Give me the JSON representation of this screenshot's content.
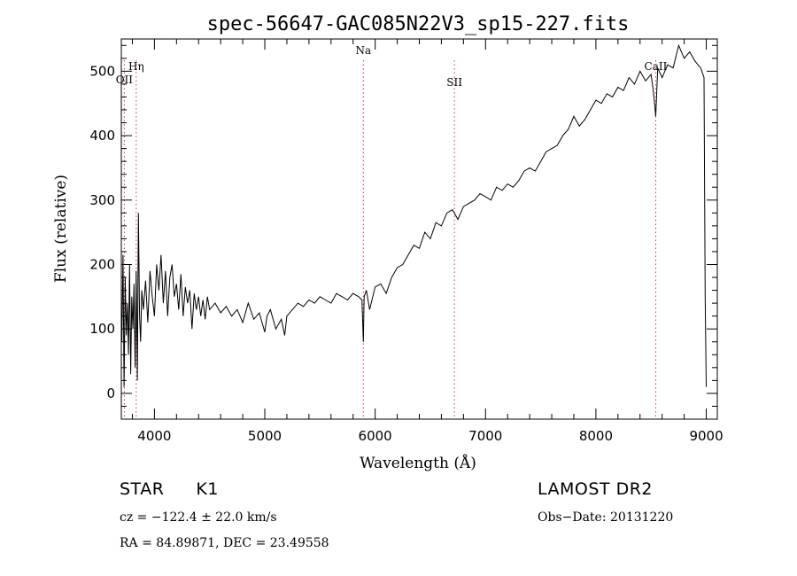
{
  "chart_data": {
    "type": "line",
    "title": "spec-56647-GAC085N22V3_sp15-227.fits",
    "xlabel": "Wavelength (Å)",
    "ylabel": "Flux (relative)",
    "xlim": [
      3700,
      9100
    ],
    "ylim": [
      -40,
      550
    ],
    "x_ticks": [
      4000,
      5000,
      6000,
      7000,
      8000,
      9000
    ],
    "y_ticks": [
      0,
      100,
      200,
      300,
      400,
      500
    ],
    "grid": false,
    "line_color": "#000000",
    "marker_color": "#cc3333",
    "lines": [
      {
        "label": "OII",
        "x": 3727
      },
      {
        "label": "Hη",
        "x": 3835
      },
      {
        "label": "Na",
        "x": 5893
      },
      {
        "label": "SII",
        "x": 6718
      },
      {
        "label": "CaII",
        "x": 8542
      }
    ],
    "series": [
      {
        "x": [
          3705,
          3715,
          3725,
          3735,
          3745,
          3755,
          3765,
          3775,
          3785,
          3795,
          3805,
          3815,
          3825,
          3835,
          3845,
          3855,
          3865,
          3875,
          3885,
          3900,
          3920,
          3940,
          3960,
          3980,
          4000,
          4020,
          4040,
          4060,
          4080,
          4100,
          4120,
          4140,
          4160,
          4180,
          4200,
          4220,
          4240,
          4260,
          4280,
          4300,
          4320,
          4340,
          4360,
          4380,
          4400,
          4420,
          4440,
          4460,
          4480,
          4500,
          4550,
          4600,
          4650,
          4700,
          4750,
          4800,
          4850,
          4900,
          4950,
          5000,
          5020,
          5050,
          5100,
          5150,
          5180,
          5200,
          5250,
          5300,
          5350,
          5400,
          5450,
          5500,
          5550,
          5600,
          5650,
          5700,
          5750,
          5800,
          5850,
          5880,
          5893,
          5900,
          5920,
          5950,
          6000,
          6050,
          6100,
          6150,
          6200,
          6250,
          6300,
          6350,
          6400,
          6450,
          6500,
          6550,
          6600,
          6650,
          6700,
          6750,
          6800,
          6850,
          6900,
          6950,
          7000,
          7050,
          7100,
          7150,
          7200,
          7250,
          7300,
          7350,
          7400,
          7450,
          7500,
          7550,
          7600,
          7650,
          7700,
          7750,
          7800,
          7850,
          7900,
          7950,
          8000,
          8050,
          8100,
          8150,
          8200,
          8250,
          8300,
          8350,
          8400,
          8450,
          8500,
          8520,
          8542,
          8560,
          8600,
          8650,
          8700,
          8750,
          8800,
          8850,
          8900,
          8950,
          8980,
          8990,
          9000
        ],
        "y": [
          80,
          215,
          10,
          180,
          90,
          140,
          60,
          200,
          30,
          150,
          100,
          170,
          40,
          190,
          20,
          280,
          120,
          80,
          160,
          130,
          175,
          110,
          190,
          150,
          120,
          200,
          160,
          215,
          140,
          190,
          120,
          180,
          200,
          150,
          170,
          130,
          185,
          120,
          165,
          140,
          160,
          100,
          155,
          130,
          150,
          120,
          145,
          115,
          150,
          130,
          140,
          125,
          135,
          120,
          130,
          110,
          140,
          115,
          125,
          95,
          120,
          130,
          100,
          115,
          90,
          120,
          130,
          140,
          135,
          145,
          140,
          150,
          145,
          140,
          155,
          150,
          145,
          155,
          150,
          145,
          80,
          150,
          160,
          130,
          165,
          170,
          155,
          180,
          195,
          200,
          215,
          230,
          225,
          250,
          240,
          265,
          260,
          280,
          285,
          270,
          290,
          295,
          300,
          310,
          305,
          300,
          320,
          315,
          325,
          320,
          330,
          345,
          350,
          345,
          360,
          375,
          380,
          385,
          400,
          410,
          430,
          415,
          425,
          440,
          455,
          450,
          465,
          460,
          475,
          470,
          490,
          480,
          500,
          485,
          495,
          470,
          430,
          505,
          490,
          510,
          505,
          540,
          520,
          530,
          515,
          505,
          490,
          150,
          10
        ]
      }
    ],
    "annotations": {
      "object_line": {
        "class": "STAR",
        "subclass": "K1"
      },
      "survey": "LAMOST DR2",
      "redshift": "cz = −122.4 ± 22.0 km/s",
      "obs_date": "Obs−Date: 20131220",
      "coords": "RA =  84.89871, DEC =  23.49558"
    }
  }
}
